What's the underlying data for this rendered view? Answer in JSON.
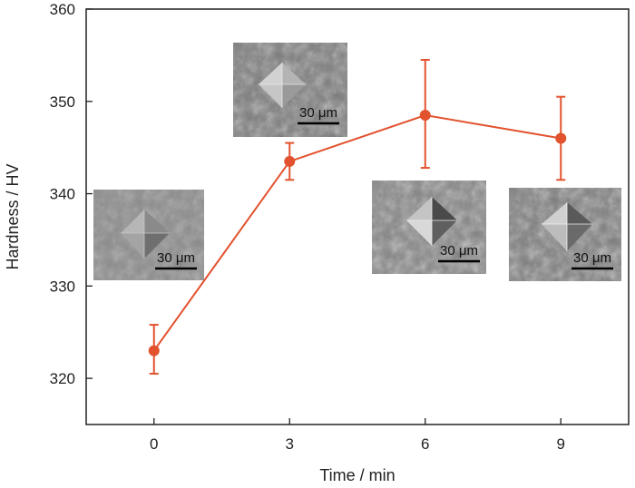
{
  "chart_data": {
    "type": "line",
    "xlabel": "Time / min",
    "ylabel": "Hardness / HV",
    "x": [
      0,
      3,
      6,
      9
    ],
    "xticks": [
      "0",
      "3",
      "6",
      "9"
    ],
    "xlim": [
      -1.5,
      10.5
    ],
    "ylim": [
      315,
      360
    ],
    "yticks": [
      "320",
      "330",
      "340",
      "350",
      "360"
    ],
    "grid": false,
    "series": [
      {
        "values": [
          323,
          343.5,
          348.5,
          346
        ],
        "err_low": [
          320.5,
          341.5,
          342.8,
          341.5
        ],
        "err_high": [
          325.8,
          345.5,
          354.5,
          350.5
        ],
        "color": "#e2522e",
        "marker": "circle"
      }
    ],
    "insets": [
      {
        "scale_bar": "30 μm",
        "time": 0
      },
      {
        "scale_bar": "30 μm",
        "time": 3
      },
      {
        "scale_bar": "30 μm",
        "time": 6
      },
      {
        "scale_bar": "30 μm",
        "time": 9
      }
    ]
  }
}
